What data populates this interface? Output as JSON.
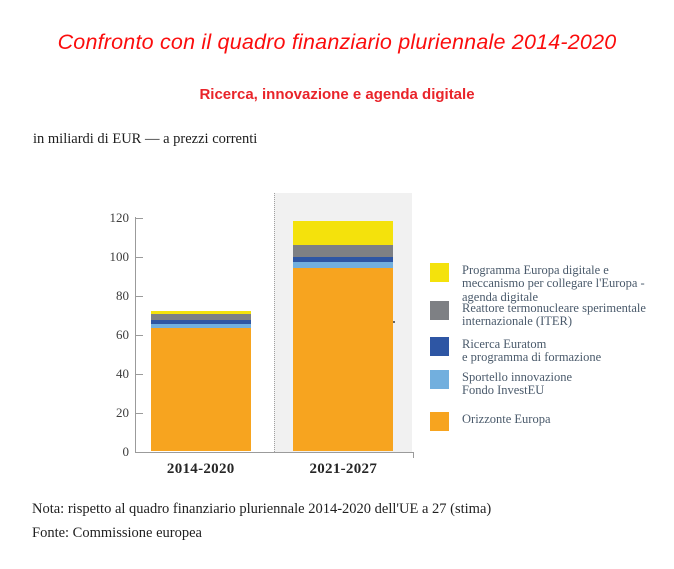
{
  "header": {
    "title": "Confronto con il quadro finanziario pluriennale 2014-2020",
    "subtitle": "Ricerca, innovazione e agenda digitale"
  },
  "chart": {
    "units_label": "in miliardi di EUR — a prezzi correnti"
  },
  "chart_data": {
    "type": "bar",
    "stacked": true,
    "title": "Ricerca, innovazione e agenda digitale",
    "ylabel": "miliardi di EUR (prezzi correnti)",
    "categories": [
      "2014-2020",
      "2021-2027"
    ],
    "series": [
      {
        "name": "Orizzonte Europa",
        "color_key": "orange",
        "values": [
          63.3,
          94.1
        ]
      },
      {
        "name": "Sportello innovazione Fondo InvestEU",
        "color_key": "light_blue",
        "values": [
          2.0,
          3.5
        ]
      },
      {
        "name": "Ricerca Euratom e programma di formazione",
        "color_key": "dark_blue",
        "values": [
          2.1,
          2.4
        ]
      },
      {
        "name": "Reattore termonucleare sperimentale internazionale (ITER)",
        "color_key": "gray",
        "values": [
          3.1,
          6.1
        ]
      },
      {
        "name": "Programma Europa digitale e meccanismo per collegare l'Europa - agenda digitale",
        "color_key": "yellow",
        "values": [
          1.8,
          12.2
        ]
      }
    ],
    "totals": [
      72.3,
      118.3
    ],
    "y_ticks": [
      0,
      20,
      40,
      60,
      80,
      100,
      120
    ],
    "ylim": [
      0,
      120
    ],
    "grid": false,
    "legend_position": "right",
    "highlight_category": "2021-2027"
  },
  "legend": {
    "items": [
      {
        "color_key": "yellow",
        "lines": [
          "Programma Europa digitale e",
          "meccanismo per collegare l'Europa -",
          "agenda digitale"
        ]
      },
      {
        "color_key": "gray",
        "lines": [
          "Reattore termonucleare sperimentale",
          "internazionale (ITER)"
        ]
      },
      {
        "color_key": "dark_blue",
        "lines": [
          "Ricerca Euratom",
          "e programma di formazione"
        ]
      },
      {
        "color_key": "light_blue",
        "lines": [
          "Sportello innovazione",
          "Fondo InvestEU"
        ]
      },
      {
        "color_key": "orange",
        "lines": [
          "Orizzonte Europa"
        ]
      }
    ]
  },
  "colors": {
    "orange": "#F7A41F",
    "light_blue": "#72AFDE",
    "dark_blue": "#2E56A4",
    "gray": "#7E8084",
    "yellow": "#F4E20C",
    "band": "#F1F1F1",
    "title_red": "#FB0D0D",
    "subtitle_red": "#E9242A",
    "legend_text": "#4A5A6B",
    "axis": "#9B9B9B",
    "tick_label": "#3D3D3D"
  },
  "notes": {
    "nota": "Nota: rispetto al quadro finanziario pluriennale 2014-2020 dell'UE a 27 (stima)",
    "fonte": "Fonte: Commissione europea"
  }
}
